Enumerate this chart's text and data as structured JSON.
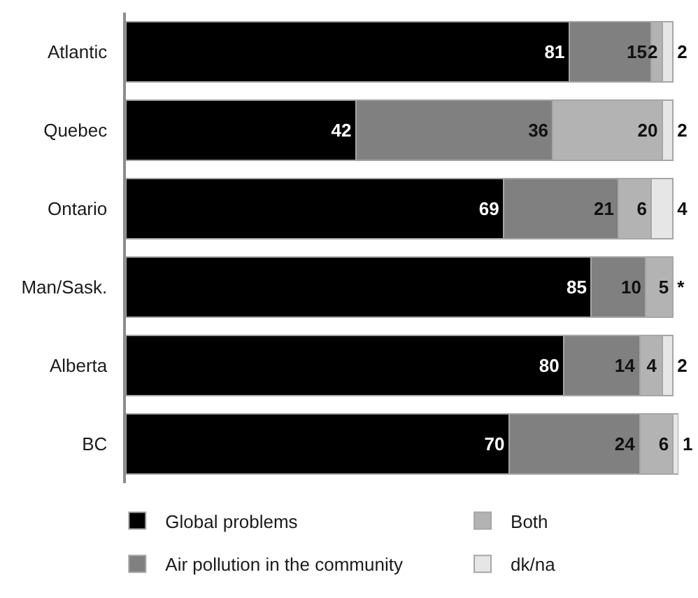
{
  "chart_data": {
    "type": "bar",
    "orientation": "horizontal",
    "stacked": true,
    "categories": [
      "Atlantic",
      "Quebec",
      "Ontario",
      "Man/Sask.",
      "Alberta",
      "BC"
    ],
    "series": [
      {
        "name": "Global problems",
        "color": "#000000",
        "values": [
          81,
          42,
          69,
          85,
          80,
          70
        ]
      },
      {
        "name": "Air pollution in the community",
        "color": "#808080",
        "values": [
          15,
          36,
          21,
          10,
          14,
          24
        ]
      },
      {
        "name": "Both",
        "color": "#b3b3b3",
        "values": [
          2,
          20,
          6,
          5,
          4,
          6
        ]
      },
      {
        "name": "dk/na",
        "color": "#e6e6e6",
        "values": [
          2,
          2,
          4,
          0,
          2,
          1
        ],
        "value_labels": [
          "2",
          "2",
          "4",
          "*",
          "2",
          "1"
        ]
      }
    ],
    "data_labels": true,
    "tick_labels": "y",
    "legend": "bottom"
  }
}
